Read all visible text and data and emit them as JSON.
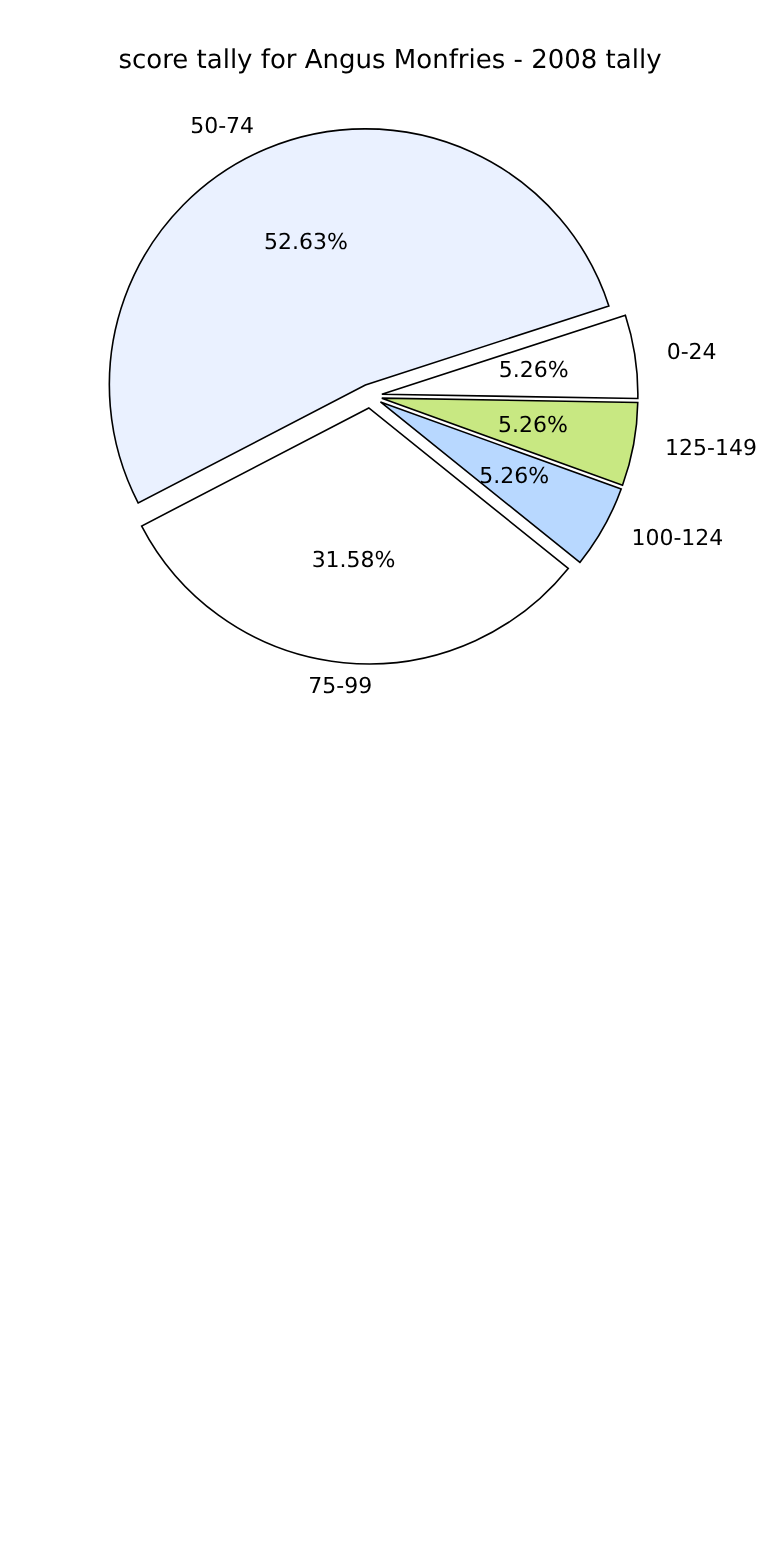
{
  "chart_data": {
    "type": "pie",
    "title": "score tally for Angus Monfries - 2008 tally",
    "categories": [
      "50-74",
      "0-24",
      "125-149",
      "100-124",
      "75-99"
    ],
    "values": [
      52.63,
      5.26,
      5.26,
      5.26,
      31.58
    ],
    "value_labels": [
      "52.63%",
      "5.26%",
      "5.26%",
      "5.26%",
      "31.58%"
    ],
    "colors": [
      "#eaf1ff",
      "#ffffff",
      "#c8e882",
      "#b8d8ff",
      "#ffffff"
    ]
  }
}
